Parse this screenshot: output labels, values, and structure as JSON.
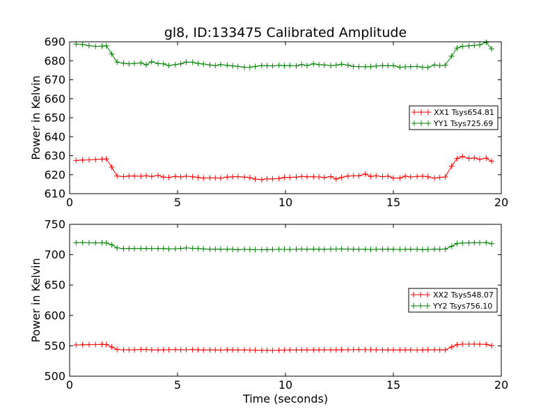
{
  "figure": {
    "title": "gl8, ID:133475 Calibrated Amplitude",
    "xlabel": "Time (seconds)"
  },
  "colors": {
    "xx": "#ff0000",
    "yy": "#008000"
  },
  "chart_data": [
    {
      "type": "line",
      "title": "gl8, ID:133475 Calibrated Amplitude",
      "xlabel": "",
      "ylabel": "Power in Kelvin",
      "xlim": [
        0,
        20
      ],
      "ylim": [
        610,
        690
      ],
      "xticks": [
        0,
        5,
        10,
        15,
        20
      ],
      "yticks": [
        610,
        620,
        630,
        640,
        650,
        660,
        670,
        680,
        690
      ],
      "legend_position": "right",
      "marker": "+",
      "x": [
        0.3,
        0.6,
        0.9,
        1.2,
        1.5,
        1.7,
        1.95,
        2.2,
        2.5,
        2.75,
        3.0,
        3.3,
        3.55,
        3.8,
        4.1,
        4.35,
        4.6,
        4.9,
        5.15,
        5.4,
        5.7,
        5.95,
        6.2,
        6.5,
        6.75,
        7.0,
        7.3,
        7.55,
        7.8,
        8.1,
        8.35,
        8.6,
        8.9,
        9.15,
        9.4,
        9.7,
        9.95,
        10.2,
        10.5,
        10.75,
        11.0,
        11.3,
        11.55,
        11.8,
        12.1,
        12.35,
        12.6,
        12.9,
        13.15,
        13.4,
        13.7,
        13.95,
        14.2,
        14.5,
        14.75,
        15.0,
        15.3,
        15.55,
        15.8,
        16.1,
        16.35,
        16.6,
        16.9,
        17.15,
        17.4,
        17.7,
        17.95,
        18.2,
        18.5,
        18.75,
        19.0,
        19.3,
        19.55
      ],
      "series": [
        {
          "name": "XX1 Tsys654.81",
          "color": "#ff0000",
          "values": [
            627.5,
            627.7,
            627.8,
            628.0,
            628.2,
            628.3,
            624.0,
            619.3,
            619.0,
            619.3,
            619.3,
            619.2,
            619.4,
            619.1,
            619.6,
            618.7,
            618.6,
            619.1,
            618.8,
            619.2,
            618.9,
            618.6,
            618.2,
            618.3,
            618.3,
            618.2,
            618.7,
            618.9,
            619.0,
            618.7,
            618.4,
            617.7,
            617.4,
            617.8,
            617.8,
            618.0,
            618.6,
            618.6,
            618.7,
            619.1,
            618.9,
            618.9,
            618.8,
            618.5,
            619.0,
            617.7,
            618.6,
            619.3,
            619.4,
            619.4,
            620.3,
            619.1,
            619.4,
            619.0,
            619.2,
            618.2,
            618.2,
            619.2,
            618.8,
            619.1,
            619.2,
            618.9,
            618.2,
            618.6,
            618.8,
            624.5,
            628.5,
            629.6,
            628.6,
            628.8,
            628.1,
            628.7,
            627.1
          ]
        },
        {
          "name": "YY1 Tsys725.69",
          "color": "#008000",
          "values": [
            688.8,
            688.6,
            688.0,
            687.6,
            687.7,
            687.9,
            683.6,
            679.3,
            678.7,
            678.4,
            678.6,
            678.9,
            677.9,
            679.5,
            678.5,
            678.4,
            677.5,
            678.0,
            678.4,
            679.3,
            679.2,
            678.6,
            678.3,
            677.8,
            677.5,
            678.0,
            677.6,
            677.3,
            677.0,
            676.6,
            676.6,
            677.0,
            677.5,
            677.4,
            677.3,
            677.6,
            677.4,
            677.5,
            677.3,
            678.0,
            677.5,
            678.4,
            678.0,
            677.8,
            677.5,
            677.7,
            678.2,
            677.7,
            677.0,
            676.9,
            676.9,
            676.9,
            677.2,
            677.5,
            677.4,
            677.5,
            676.6,
            676.8,
            676.9,
            677.0,
            676.6,
            676.5,
            677.8,
            677.5,
            677.6,
            682.5,
            686.7,
            687.6,
            687.9,
            688.1,
            688.4,
            689.7,
            686.3
          ]
        }
      ]
    },
    {
      "type": "line",
      "title": "",
      "xlabel": "Time (seconds)",
      "ylabel": "Power in Kelvin",
      "xlim": [
        0,
        20
      ],
      "ylim": [
        500,
        750
      ],
      "xticks": [
        0,
        5,
        10,
        15,
        20
      ],
      "yticks": [
        500,
        550,
        600,
        650,
        700,
        750
      ],
      "legend_position": "right",
      "marker": "+",
      "x": [
        0.3,
        0.6,
        0.9,
        1.2,
        1.5,
        1.7,
        1.95,
        2.2,
        2.5,
        2.75,
        3.0,
        3.3,
        3.55,
        3.8,
        4.1,
        4.35,
        4.6,
        4.9,
        5.15,
        5.4,
        5.7,
        5.95,
        6.2,
        6.5,
        6.75,
        7.0,
        7.3,
        7.55,
        7.8,
        8.1,
        8.35,
        8.6,
        8.9,
        9.15,
        9.4,
        9.7,
        9.95,
        10.2,
        10.5,
        10.75,
        11.0,
        11.3,
        11.55,
        11.8,
        12.1,
        12.35,
        12.6,
        12.9,
        13.15,
        13.4,
        13.7,
        13.95,
        14.2,
        14.5,
        14.75,
        15.0,
        15.3,
        15.55,
        15.8,
        16.1,
        16.35,
        16.6,
        16.9,
        17.15,
        17.4,
        17.7,
        17.95,
        18.2,
        18.5,
        18.75,
        19.0,
        19.3,
        19.55
      ],
      "series": [
        {
          "name": "XX2 Tsys548.07",
          "color": "#ff0000",
          "values": [
            551.5,
            551.8,
            552.0,
            552.2,
            552.4,
            552.0,
            548.0,
            544.0,
            543.5,
            543.5,
            543.5,
            544.0,
            543.8,
            543.4,
            543.2,
            543.4,
            543.6,
            543.8,
            543.5,
            543.6,
            543.8,
            543.4,
            543.2,
            543.3,
            543.2,
            543.0,
            543.5,
            543.4,
            543.2,
            543.2,
            543.0,
            542.8,
            542.6,
            542.6,
            542.6,
            542.8,
            543.0,
            543.2,
            543.2,
            543.3,
            543.3,
            543.2,
            543.4,
            543.4,
            543.3,
            543.5,
            543.4,
            543.5,
            543.6,
            543.8,
            543.6,
            543.6,
            543.5,
            543.2,
            543.3,
            543.2,
            543.2,
            543.3,
            543.4,
            543.0,
            543.2,
            543.4,
            543.6,
            543.2,
            543.3,
            548.0,
            551.8,
            552.8,
            552.8,
            552.9,
            552.6,
            552.4,
            550.3
          ]
        },
        {
          "name": "YY2 Tsys756.10",
          "color": "#008000",
          "values": [
            719.8,
            719.9,
            719.6,
            719.4,
            719.6,
            719.3,
            716.3,
            711.2,
            710.0,
            710.2,
            710.2,
            710.1,
            710.3,
            710.0,
            710.2,
            710.2,
            709.5,
            709.8,
            710.3,
            711.1,
            710.4,
            710.2,
            709.6,
            709.0,
            709.1,
            709.1,
            709.0,
            708.9,
            708.2,
            708.8,
            708.6,
            708.3,
            708.1,
            708.5,
            708.6,
            708.8,
            708.7,
            708.6,
            708.8,
            709.3,
            709.0,
            709.2,
            709.0,
            708.9,
            709.2,
            709.3,
            709.4,
            709.3,
            709.0,
            708.8,
            708.9,
            708.6,
            708.8,
            708.9,
            708.9,
            708.9,
            708.6,
            708.8,
            708.9,
            708.8,
            708.3,
            708.6,
            709.1,
            709.0,
            709.3,
            713.9,
            718.5,
            719.2,
            719.5,
            719.7,
            719.6,
            719.9,
            718.2
          ]
        }
      ]
    }
  ]
}
